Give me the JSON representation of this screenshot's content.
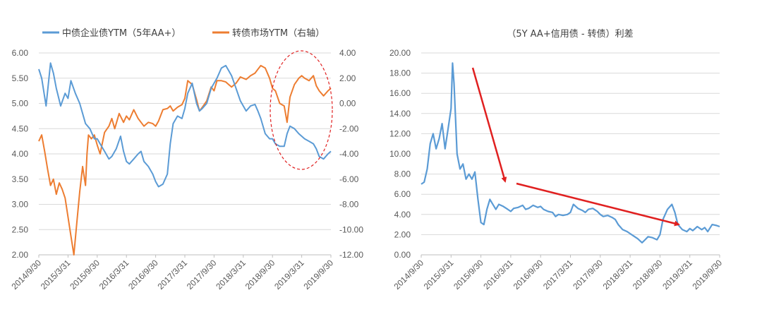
{
  "colors": {
    "blue": "#5b9bd5",
    "orange": "#ed7d31",
    "red": "#e02020",
    "grid": "#d9d9d9"
  },
  "chart_data": [
    {
      "type": "line",
      "legend": [
        {
          "name": "中债企业债YTM（5年AA+）",
          "color": "#5b9bd5"
        },
        {
          "name": "转债市场YTM（右轴）",
          "color": "#ed7d31"
        }
      ],
      "x_labels": [
        "2014/9/30",
        "2015/3/31",
        "2015/9/30",
        "2016/3/31",
        "2016/9/30",
        "2017/3/31",
        "2017/9/30",
        "2018/3/31",
        "2018/9/30",
        "2019/3/31",
        "2019/9/30"
      ],
      "y_left_labels": [
        "2.00",
        "2.50",
        "3.00",
        "3.50",
        "4.00",
        "4.50",
        "5.00",
        "5.50",
        "6.00"
      ],
      "y_right_labels": [
        "-12.00",
        "-10.00",
        "-8.00",
        "-6.00",
        "-4.00",
        "-2.00",
        "0.00",
        "2.00",
        "4.00"
      ],
      "y_left_range": [
        2.0,
        6.0
      ],
      "y_right_range": [
        -12.0,
        4.0
      ],
      "annotation": "red dashed ellipse around 2018/9/30 – 2019/9/30",
      "series": [
        {
          "name": "中债企业债YTM（5年AA+）",
          "axis": "left",
          "x": [
            0.0,
            0.1,
            0.25,
            0.4,
            0.5,
            0.6,
            0.75,
            0.9,
            1.0,
            1.1,
            1.25,
            1.4,
            1.5,
            1.6,
            1.75,
            1.9,
            2.0,
            2.1,
            2.25,
            2.4,
            2.5,
            2.65,
            2.8,
            2.9,
            3.0,
            3.1,
            3.25,
            3.4,
            3.5,
            3.6,
            3.75,
            3.9,
            4.0,
            4.1,
            4.25,
            4.4,
            4.5,
            4.6,
            4.75,
            4.9,
            5.0,
            5.1,
            5.25,
            5.4,
            5.5,
            5.6,
            5.75,
            5.9,
            6.0,
            6.1,
            6.25,
            6.4,
            6.5,
            6.6,
            6.75,
            6.9,
            7.0,
            7.1,
            7.25,
            7.4,
            7.5,
            7.6,
            7.75,
            7.9,
            8.0,
            8.1,
            8.25,
            8.4,
            8.5,
            8.6,
            8.75,
            8.9,
            9.0,
            9.1,
            9.25,
            9.4,
            9.5,
            9.6,
            9.75,
            9.9,
            10.0
          ],
          "values": [
            5.68,
            5.5,
            4.95,
            5.8,
            5.6,
            5.3,
            4.95,
            5.2,
            5.1,
            5.45,
            5.2,
            5.0,
            4.8,
            4.6,
            4.5,
            4.3,
            4.3,
            4.2,
            4.05,
            3.9,
            3.95,
            4.1,
            4.35,
            4.05,
            3.85,
            3.8,
            3.9,
            4.0,
            4.05,
            3.85,
            3.75,
            3.6,
            3.45,
            3.35,
            3.4,
            3.6,
            4.2,
            4.6,
            4.75,
            4.7,
            4.9,
            5.2,
            5.4,
            5.0,
            4.85,
            4.9,
            5.0,
            5.3,
            5.4,
            5.5,
            5.7,
            5.75,
            5.65,
            5.55,
            5.3,
            5.05,
            4.95,
            4.85,
            4.95,
            4.98,
            4.85,
            4.7,
            4.4,
            4.3,
            4.3,
            4.2,
            4.15,
            4.15,
            4.4,
            4.55,
            4.5,
            4.4,
            4.35,
            4.3,
            4.25,
            4.2,
            4.1,
            3.95,
            3.9,
            4.0,
            4.05
          ]
        },
        {
          "name": "转债市场YTM（右轴）",
          "axis": "right",
          "x": [
            0.0,
            0.1,
            0.2,
            0.3,
            0.4,
            0.5,
            0.6,
            0.7,
            0.8,
            0.9,
            1.0,
            1.1,
            1.2,
            1.3,
            1.4,
            1.5,
            1.6,
            1.65,
            1.7,
            1.8,
            1.9,
            2.0,
            2.1,
            2.25,
            2.4,
            2.5,
            2.6,
            2.75,
            2.9,
            3.0,
            3.1,
            3.25,
            3.4,
            3.5,
            3.6,
            3.75,
            3.9,
            4.0,
            4.1,
            4.25,
            4.4,
            4.5,
            4.6,
            4.75,
            4.9,
            5.0,
            5.1,
            5.25,
            5.4,
            5.5,
            5.6,
            5.75,
            5.9,
            6.0,
            6.1,
            6.25,
            6.4,
            6.5,
            6.6,
            6.75,
            6.9,
            7.0,
            7.1,
            7.25,
            7.4,
            7.5,
            7.6,
            7.75,
            7.9,
            8.0,
            8.1,
            8.25,
            8.4,
            8.5,
            8.6,
            8.75,
            8.9,
            9.0,
            9.1,
            9.25,
            9.4,
            9.5,
            9.6,
            9.75,
            9.9,
            10.0
          ],
          "values": [
            -3.0,
            -2.5,
            -3.8,
            -5.2,
            -6.5,
            -6.0,
            -7.2,
            -6.3,
            -6.8,
            -7.5,
            -9.0,
            -10.5,
            -12.0,
            -9.5,
            -7.0,
            -5.0,
            -6.5,
            -4.0,
            -2.5,
            -2.8,
            -2.5,
            -3.3,
            -4.0,
            -2.3,
            -1.8,
            -1.2,
            -2.0,
            -0.8,
            -1.5,
            -1.0,
            -1.3,
            -0.5,
            -1.2,
            -1.5,
            -1.8,
            -1.5,
            -1.6,
            -1.8,
            -1.4,
            -0.5,
            -0.4,
            -0.2,
            -0.6,
            -0.3,
            -0.1,
            0.4,
            1.8,
            1.5,
            0.3,
            -0.6,
            -0.3,
            0.2,
            1.3,
            1.0,
            1.8,
            1.8,
            1.7,
            1.5,
            1.3,
            1.6,
            2.1,
            2.0,
            1.9,
            2.2,
            2.4,
            2.7,
            3.0,
            2.8,
            2.0,
            1.2,
            1.0,
            0.0,
            -0.2,
            -1.5,
            0.5,
            1.5,
            2.0,
            2.2,
            2.0,
            1.8,
            2.2,
            1.4,
            1.0,
            0.6,
            1.0,
            1.2
          ]
        }
      ]
    },
    {
      "type": "line",
      "title": "（5Y AA+信用债 - 转债）利差",
      "x_labels": [
        "2014/9/30",
        "2015/3/31",
        "2015/9/30",
        "2016/3/31",
        "2016/9/30",
        "2017/3/31",
        "2017/9/30",
        "2018/3/31",
        "2018/9/30",
        "2019/3/31",
        "2019/9/30"
      ],
      "y_labels": [
        "0.00",
        "2.00",
        "4.00",
        "6.00",
        "8.00",
        "10.00",
        "12.00",
        "14.00",
        "16.00",
        "18.00",
        "20.00"
      ],
      "y_range": [
        0,
        20
      ],
      "annotation": "two red arrows indicating a declining trend",
      "series": [
        {
          "name": "",
          "x": [
            0.0,
            0.1,
            0.2,
            0.3,
            0.4,
            0.5,
            0.6,
            0.7,
            0.8,
            0.9,
            1.0,
            1.05,
            1.1,
            1.2,
            1.3,
            1.4,
            1.5,
            1.6,
            1.7,
            1.8,
            1.9,
            2.0,
            2.1,
            2.2,
            2.3,
            2.4,
            2.5,
            2.6,
            2.75,
            2.9,
            3.0,
            3.1,
            3.25,
            3.4,
            3.5,
            3.6,
            3.75,
            3.9,
            4.0,
            4.1,
            4.25,
            4.4,
            4.5,
            4.6,
            4.75,
            4.9,
            5.0,
            5.1,
            5.25,
            5.4,
            5.5,
            5.6,
            5.75,
            5.9,
            6.0,
            6.1,
            6.25,
            6.4,
            6.5,
            6.6,
            6.75,
            6.9,
            7.0,
            7.1,
            7.25,
            7.4,
            7.5,
            7.6,
            7.75,
            7.9,
            8.0,
            8.1,
            8.25,
            8.4,
            8.5,
            8.6,
            8.75,
            8.9,
            9.0,
            9.1,
            9.25,
            9.4,
            9.5,
            9.6,
            9.75,
            9.9,
            10.0
          ],
          "values": [
            7.0,
            7.2,
            8.5,
            11.0,
            12.0,
            10.5,
            11.5,
            13.0,
            10.5,
            12.5,
            14.5,
            19.0,
            17.0,
            10.0,
            8.5,
            9.0,
            7.5,
            8.0,
            7.5,
            8.2,
            5.5,
            3.2,
            3.0,
            4.5,
            5.5,
            5.0,
            4.5,
            5.0,
            4.8,
            4.5,
            4.3,
            4.6,
            4.7,
            4.9,
            4.5,
            4.6,
            4.9,
            4.7,
            4.8,
            4.5,
            4.3,
            4.2,
            3.8,
            4.0,
            3.9,
            4.0,
            4.2,
            5.0,
            4.6,
            4.4,
            4.2,
            4.5,
            4.6,
            4.3,
            4.0,
            3.8,
            3.9,
            3.7,
            3.5,
            3.0,
            2.5,
            2.3,
            2.1,
            1.9,
            1.6,
            1.2,
            1.5,
            1.8,
            1.7,
            1.5,
            2.0,
            3.5,
            4.5,
            5.0,
            4.2,
            3.0,
            2.5,
            2.3,
            2.6,
            2.4,
            2.8,
            2.5,
            2.7,
            2.3,
            3.0,
            2.9,
            2.8
          ]
        }
      ]
    }
  ]
}
